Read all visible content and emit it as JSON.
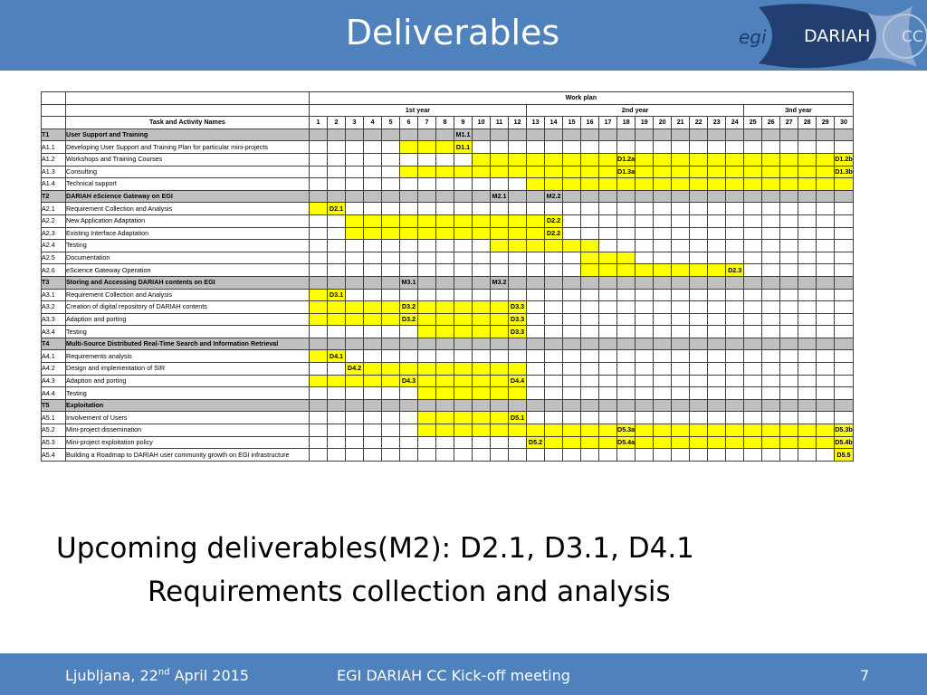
{
  "slide": {
    "title": "Deliverables",
    "logo": {
      "text_egi": "egi",
      "text_dariah": "DARIAH",
      "text_cc": "CC"
    },
    "bullet_line1": "Upcoming deliverables(M2): D2.1, D3.1, D4.1",
    "bullet_line2": "Requirements collection and analysis",
    "footer": {
      "location_prefix": "Ljubljana, 22",
      "location_sup": "nd",
      "location_suffix": " April 2015",
      "meeting": "EGI DARIAH CC Kick-off  meeting",
      "page": "7"
    },
    "colors": {
      "header": "#4F81BD",
      "highlight": "#FFFF00",
      "task_row": "#C0C0C0"
    }
  },
  "workplan": {
    "title": "Work plan",
    "years": [
      "1st year",
      "2nd year",
      "3nd year"
    ],
    "column_header": "Task and Activity Names",
    "months": [
      "1",
      "2",
      "3",
      "4",
      "5",
      "6",
      "7",
      "8",
      "9",
      "10",
      "11",
      "12",
      "13",
      "14",
      "15",
      "16",
      "17",
      "18",
      "19",
      "20",
      "21",
      "22",
      "23",
      "24",
      "25",
      "26",
      "27",
      "28",
      "29",
      "30"
    ],
    "rows": [
      {
        "id": "T1",
        "name": "User Support and Training",
        "task": true,
        "yellow": [],
        "labels": {
          "9": "M1.1"
        }
      },
      {
        "id": "A1.1",
        "name": "Developing User Support and Training Plan for particular  mini-projects",
        "yellow": [
          6,
          7,
          8,
          9
        ],
        "labels": {
          "9": "D1.1"
        }
      },
      {
        "id": "A1.2",
        "name": "Workshops and  Training Courses",
        "yellow": [
          10,
          11,
          12,
          13,
          14,
          15,
          16,
          17,
          18,
          19,
          20,
          21,
          22,
          23,
          24,
          25,
          26,
          27,
          28,
          29,
          30
        ],
        "labels": {
          "18": "D1.2a",
          "30": "D1.2b"
        }
      },
      {
        "id": "A1.3",
        "name": "Consulting",
        "yellow": [
          6,
          7,
          8,
          9,
          10,
          11,
          12,
          13,
          14,
          15,
          16,
          17,
          18,
          19,
          20,
          21,
          22,
          23,
          24,
          25,
          26,
          27,
          28,
          29,
          30
        ],
        "labels": {
          "18": "D1.3a",
          "30": "D1.3b"
        }
      },
      {
        "id": "A1.4",
        "name": "Technical support",
        "yellow": [
          13,
          14,
          15,
          16,
          17,
          18,
          19,
          20,
          21,
          22,
          23,
          24,
          25,
          26,
          27,
          28,
          29,
          30
        ],
        "labels": {}
      },
      {
        "id": "T2",
        "name": "DARIAH eScience Gateway on EGI",
        "task": true,
        "yellow": [],
        "labels": {
          "11": "M2.1",
          "14": "M2.2"
        }
      },
      {
        "id": "A2.1",
        "name": "Requirement Collection and Analysis",
        "yellow": [
          1,
          2
        ],
        "labels": {
          "2": "D2.1"
        }
      },
      {
        "id": "A2.2",
        "name": "New Application Adaptation",
        "yellow": [
          3,
          4,
          5,
          6,
          7,
          8,
          9,
          10,
          11,
          12,
          13,
          14
        ],
        "labels": {
          "14": "D2.2"
        }
      },
      {
        "id": "A2.3",
        "name": "Existing Interface Adaptation",
        "yellow": [
          3,
          4,
          5,
          6,
          7,
          8,
          9,
          10,
          11,
          12,
          13,
          14
        ],
        "labels": {
          "14": "D2.2"
        }
      },
      {
        "id": "A2.4",
        "name": "Testing",
        "yellow": [
          11,
          12,
          13,
          14,
          15,
          16
        ],
        "labels": {}
      },
      {
        "id": "A2.5",
        "name": "Documentation",
        "yellow": [
          16,
          17,
          18
        ],
        "labels": {}
      },
      {
        "id": "A2.6",
        "name": "eScience Gateway Operation",
        "yellow": [
          16,
          17,
          18,
          19,
          20,
          21,
          22,
          23,
          24
        ],
        "labels": {
          "24": "D2.3"
        }
      },
      {
        "id": "T3",
        "name": "Storing and Accessing DARIAH contents on EGI",
        "task": true,
        "yellow": [],
        "labels": {
          "6": "M3.1",
          "11": "M3.2"
        }
      },
      {
        "id": "A3.1",
        "name": "Requirement Collection and Analysis",
        "yellow": [
          1,
          2
        ],
        "labels": {
          "2": "D3.1"
        }
      },
      {
        "id": "A3.2",
        "name": "Creation of digital repository of DARIAH contents",
        "yellow": [
          1,
          2,
          3,
          4,
          5,
          6,
          7,
          8,
          9,
          10,
          11,
          12
        ],
        "labels": {
          "6": "D3.2",
          "12": "D3.3"
        }
      },
      {
        "id": "A3.3",
        "name": "Adaption and porting",
        "yellow": [
          1,
          2,
          3,
          4,
          5,
          6,
          7,
          8,
          9,
          10,
          11,
          12
        ],
        "labels": {
          "6": "D3.2",
          "12": "D3.3"
        }
      },
      {
        "id": "A3.4",
        "name": "Testing",
        "yellow": [
          7,
          8,
          9,
          10,
          11,
          12
        ],
        "labels": {
          "12": "D3.3"
        }
      },
      {
        "id": "T4",
        "name": "Multi-Source Distributed Real-Time Search and Information Retrieval",
        "task": true,
        "yellow": [],
        "labels": {}
      },
      {
        "id": "A4.1",
        "name": "Requirements analysis",
        "yellow": [
          1,
          2
        ],
        "labels": {
          "2": "D4.1"
        }
      },
      {
        "id": "A4.2",
        "name": "Design and implementation of SIR",
        "yellow": [
          3,
          4,
          5,
          6,
          7,
          8,
          9,
          10,
          11,
          12
        ],
        "labels": {
          "3": "D4.2"
        }
      },
      {
        "id": "A4.3",
        "name": "Adaption and porting",
        "yellow": [
          1,
          2,
          3,
          4,
          5,
          6,
          7,
          8,
          9,
          10,
          11,
          12
        ],
        "labels": {
          "6": "D4.3",
          "12": "D4.4"
        }
      },
      {
        "id": "A4.4",
        "name": "Testing",
        "yellow": [
          7,
          8,
          9,
          10,
          11,
          12
        ],
        "labels": {}
      },
      {
        "id": "T5",
        "name": "Exploitation",
        "task": true,
        "yellow": [],
        "labels": {}
      },
      {
        "id": "A5.1",
        "name": "Involvement of Users",
        "yellow": [
          7,
          8,
          9,
          10,
          11,
          12
        ],
        "labels": {
          "12": "D5.1"
        }
      },
      {
        "id": "A5.2",
        "name": "Mini-project dissemination",
        "yellow": [
          7,
          8,
          9,
          10,
          11,
          12,
          13,
          14,
          15,
          16,
          17,
          18,
          19,
          20,
          21,
          22,
          23,
          24,
          25,
          26,
          27,
          28,
          29,
          30
        ],
        "labels": {
          "18": "D5.3a",
          "30": "D5.3b"
        }
      },
      {
        "id": "A5.3",
        "name": "Mini-project exploitation policy",
        "yellow": [
          13,
          14,
          15,
          16,
          17,
          18,
          19,
          20,
          21,
          22,
          23,
          24,
          25,
          26,
          27,
          28,
          29,
          30
        ],
        "labels": {
          "13": "D5.2",
          "18": "D5.4a",
          "30": "D5.4b"
        }
      },
      {
        "id": "A5.4",
        "name": "Building a Roadmap to DARIAH user community growth on EGI infrastructure",
        "yellow": [
          30
        ],
        "labels": {
          "30": "D5.5"
        }
      }
    ]
  }
}
